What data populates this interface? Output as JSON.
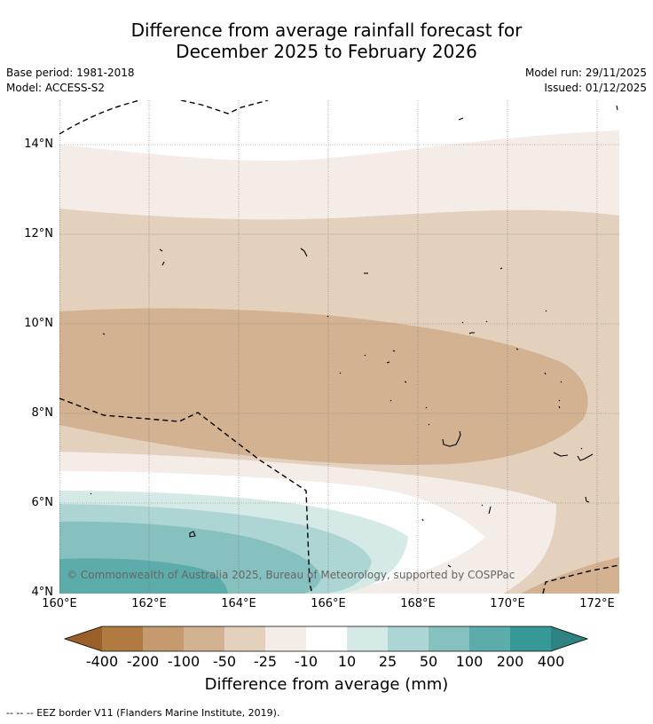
{
  "title": {
    "line1": "Difference from average rainfall forecast for",
    "line2": "December 2025 to February 2026"
  },
  "meta": {
    "base_period": "Base period: 1981-2018",
    "model": "Model: ACCESS-S2",
    "model_run": "Model run: 29/11/2025",
    "issued": "Issued: 01/12/2025"
  },
  "axes": {
    "lat_labels": [
      "14°N",
      "12°N",
      "10°N",
      "8°N",
      "6°N",
      "4°N"
    ],
    "lon_labels": [
      "160°E",
      "162°E",
      "164°E",
      "166°E",
      "168°E",
      "170°E",
      "172°E"
    ]
  },
  "copyright": "© Commonwealth of Australia 2025, Bureau of Meteorology, supported by COSPPac",
  "colorbar": {
    "ticks": [
      "-400",
      "-200",
      "-100",
      "-50",
      "-25",
      "-10",
      "10",
      "25",
      "50",
      "100",
      "200",
      "400"
    ],
    "colors": [
      "#9a5f2b",
      "#b07a43",
      "#c49a6e",
      "#d3b291",
      "#e3d0bd",
      "#f4ece6",
      "#ffffff",
      "#d5e9e7",
      "#acd5d3",
      "#86c0bf",
      "#5bacaa",
      "#369995",
      "#2d8380"
    ],
    "label": "Difference from average (mm)"
  },
  "footnote": "--  --  -- EEZ border V11 (Flanders Marine Institute, 2019)."
}
